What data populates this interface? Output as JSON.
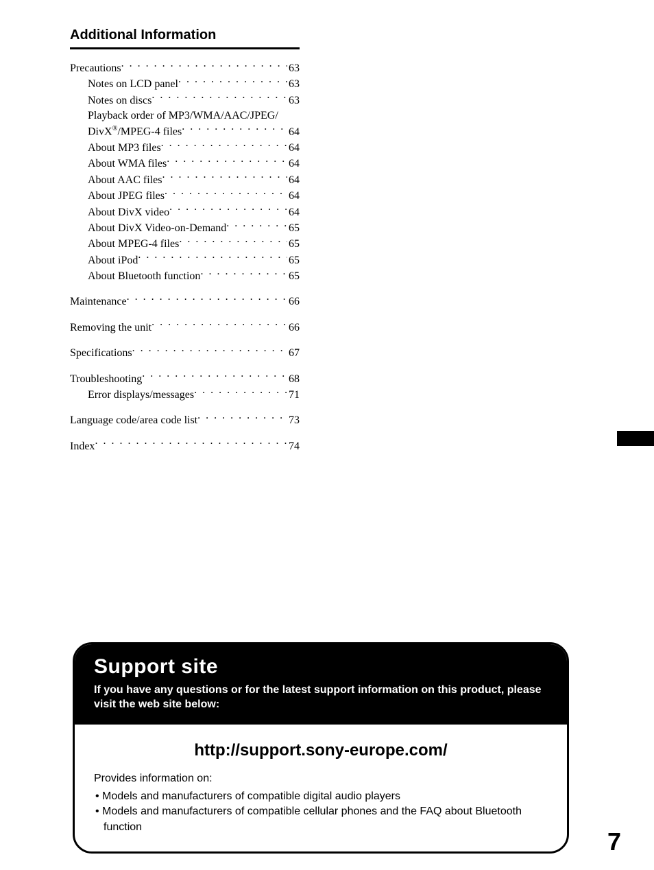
{
  "heading": "Additional Information",
  "toc": [
    {
      "items": [
        {
          "label": "Precautions",
          "page": "63",
          "indent": 0
        },
        {
          "label": "Notes on LCD panel",
          "page": "63",
          "indent": 1
        },
        {
          "label": "Notes on discs",
          "page": "63",
          "indent": 1
        },
        {
          "wrap_first": "Playback order of MP3/WMA/AAC/JPEG/",
          "label_html": "DivX<sup class='reg'>®</sup>/MPEG-4 files",
          "page": "64",
          "indent": 1
        },
        {
          "label": "About MP3 files",
          "page": "64",
          "indent": 1
        },
        {
          "label": "About WMA files",
          "page": "64",
          "indent": 1
        },
        {
          "label": "About AAC files",
          "page": "64",
          "indent": 1
        },
        {
          "label": "About JPEG files",
          "page": "64",
          "indent": 1
        },
        {
          "label": "About DivX video",
          "page": "64",
          "indent": 1
        },
        {
          "label": "About DivX Video-on-Demand",
          "page": "65",
          "indent": 1
        },
        {
          "label": "About MPEG-4 files",
          "page": "65",
          "indent": 1
        },
        {
          "label": "About iPod",
          "page": "65",
          "indent": 1
        },
        {
          "label": "About Bluetooth function",
          "page": "65",
          "indent": 1
        }
      ]
    },
    {
      "items": [
        {
          "label": "Maintenance",
          "page": "66",
          "indent": 0
        }
      ]
    },
    {
      "items": [
        {
          "label": "Removing the unit",
          "page": "66",
          "indent": 0
        }
      ]
    },
    {
      "items": [
        {
          "label": "Specifications",
          "page": "67",
          "indent": 0
        }
      ]
    },
    {
      "items": [
        {
          "label": "Troubleshooting",
          "page": "68",
          "indent": 0
        },
        {
          "label": "Error displays/messages",
          "page": "71",
          "indent": 1
        }
      ]
    },
    {
      "items": [
        {
          "label": "Language code/area code list",
          "page": "73",
          "indent": 0
        }
      ]
    },
    {
      "items": [
        {
          "label": "Index",
          "page": "74",
          "indent": 0
        }
      ]
    }
  ],
  "support": {
    "title": "Support site",
    "subtitle": "If you have any questions or for the latest support information on this product, please visit the web site below:",
    "url": "http://support.sony-europe.com/",
    "provides_label": "Provides information on:",
    "bullets": [
      "Models and manufacturers of compatible digital audio players",
      "Models and manufacturers of compatible cellular phones and the FAQ about Bluetooth function"
    ]
  },
  "page_number": "7",
  "colors": {
    "text": "#000000",
    "bg": "#ffffff",
    "box_bg": "#000000",
    "box_fg": "#ffffff"
  }
}
